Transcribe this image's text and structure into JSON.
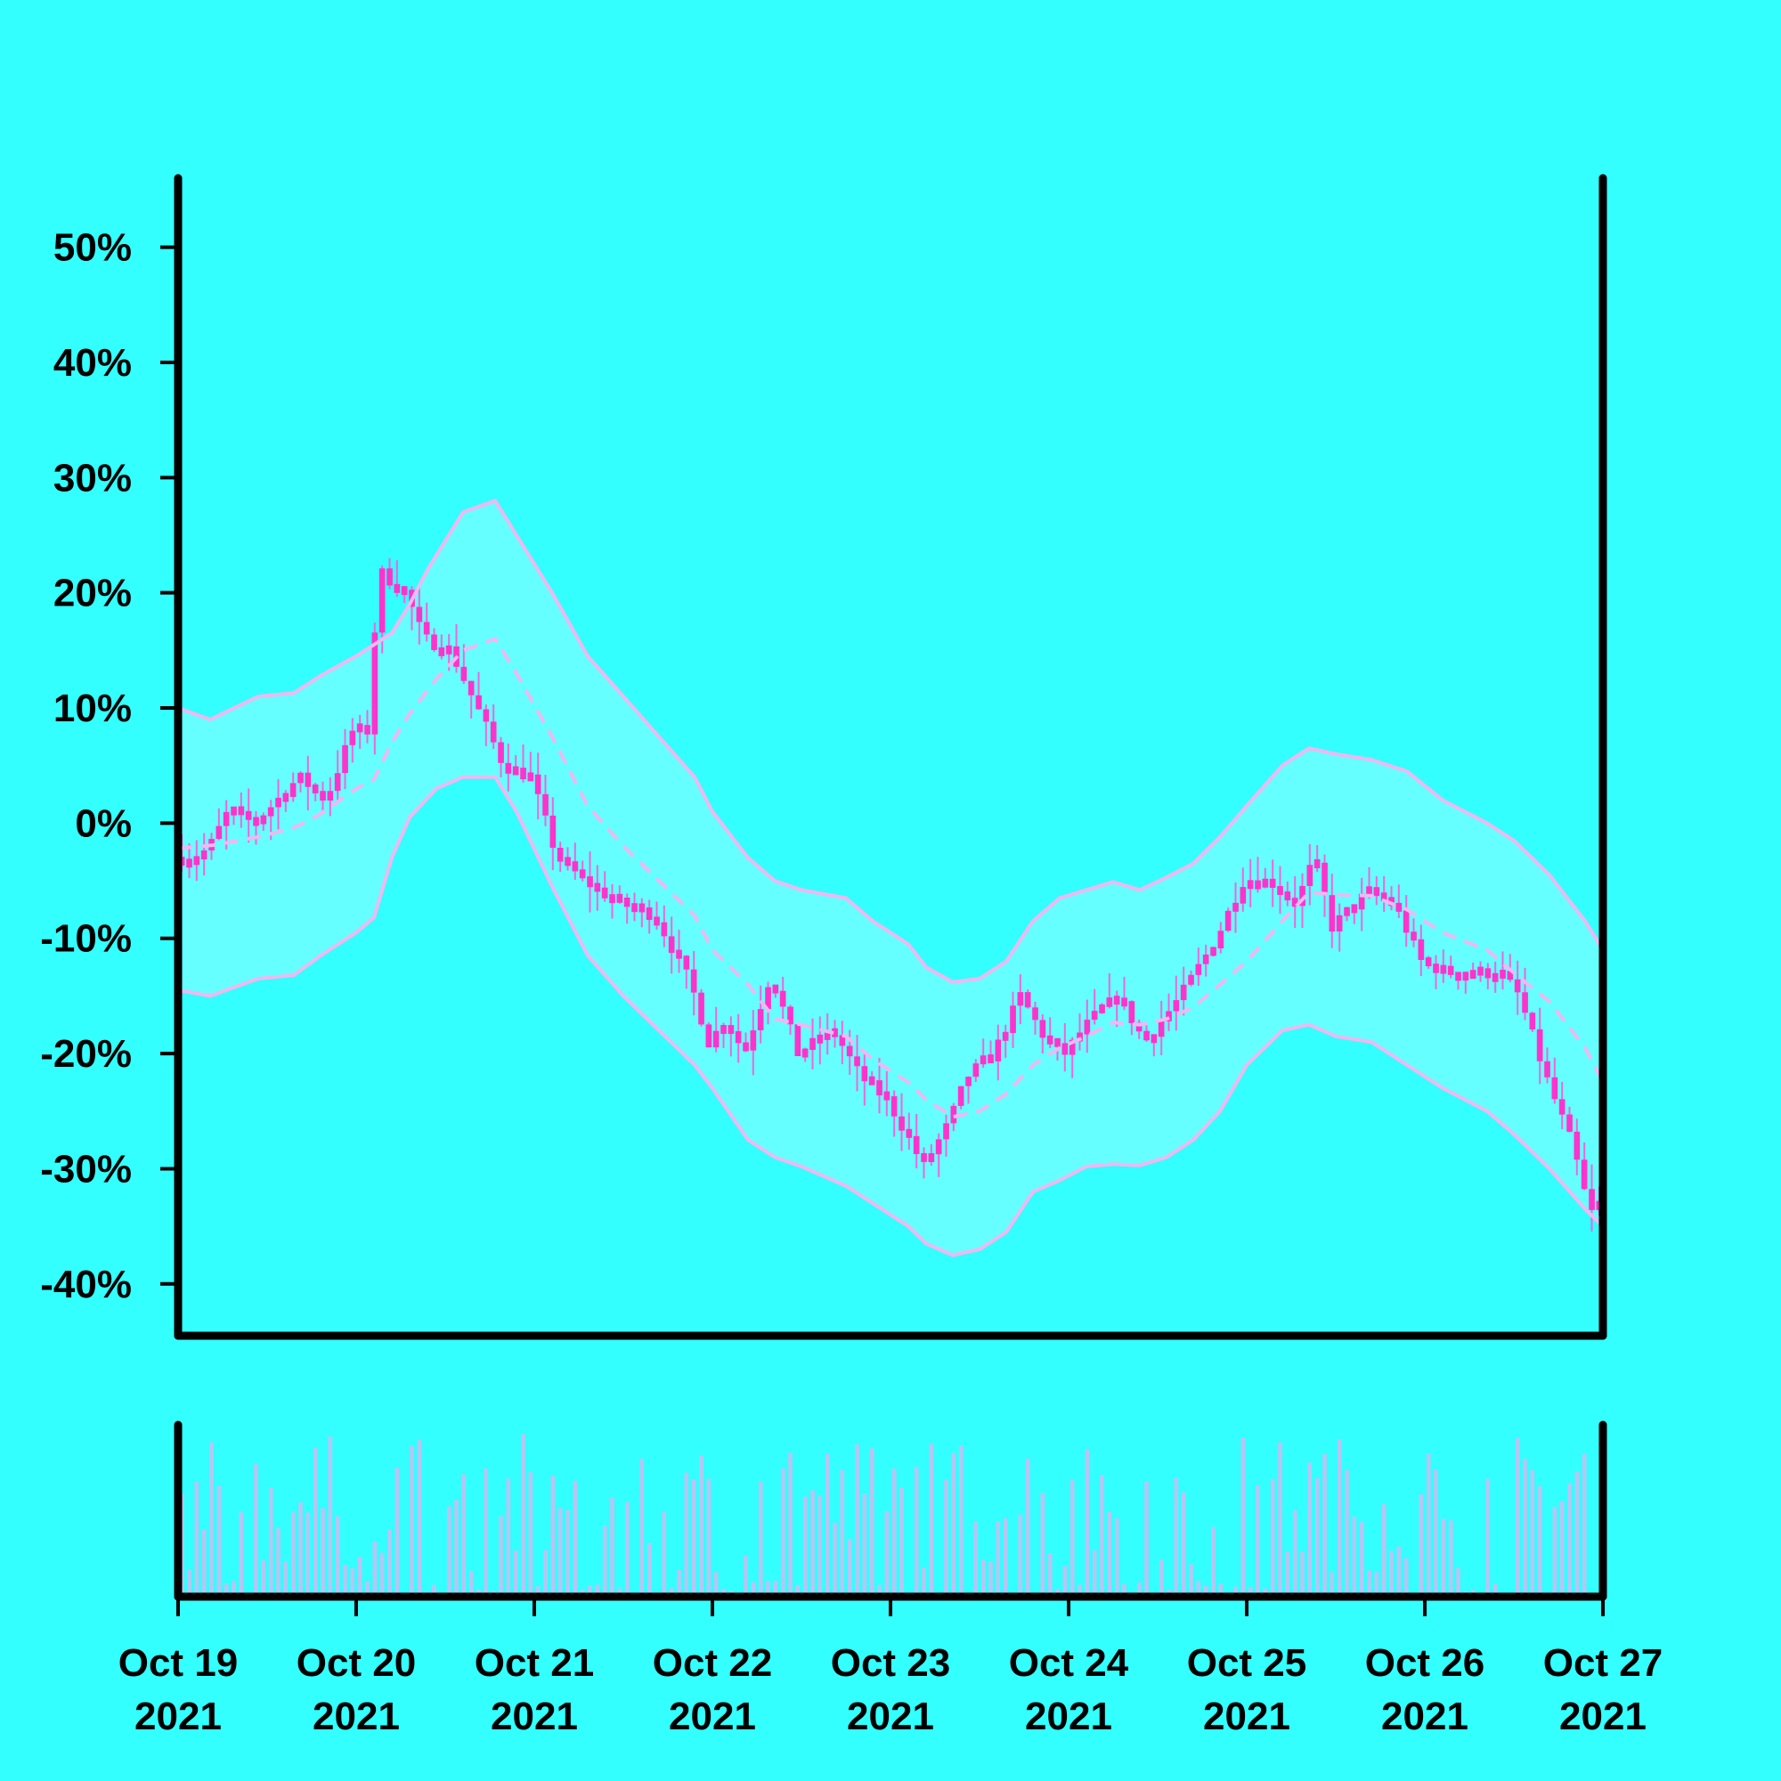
{
  "colors": {
    "background": "#33ffff",
    "band_fill": "#66ffff",
    "band_line": "#f0b8f0",
    "candle": "#ff33cc",
    "wick": "#ee66dd",
    "volume": "#b8c4f2",
    "axis": "#000000"
  },
  "chart_data": {
    "type": "candlestick",
    "title": "",
    "xlabel": "",
    "ylabel": "",
    "overlays": [
      "bollinger-upper",
      "bollinger-middle (dashed)",
      "bollinger-lower",
      "volume-bars"
    ],
    "x_range": [
      "2021-10-19 00:00",
      "2021-10-27 00:00"
    ],
    "y_range_pct": [
      -44.5,
      56
    ],
    "y_ticks": [
      {
        "value": 50,
        "label": "50%"
      },
      {
        "value": 40,
        "label": "40%"
      },
      {
        "value": 30,
        "label": "30%"
      },
      {
        "value": 20,
        "label": "20%"
      },
      {
        "value": 10,
        "label": "10%"
      },
      {
        "value": 0,
        "label": "0%"
      },
      {
        "value": -10,
        "label": "-10%"
      },
      {
        "value": -20,
        "label": "-20%"
      },
      {
        "value": -30,
        "label": "-30%"
      },
      {
        "value": -40,
        "label": "-40%"
      }
    ],
    "x_ticks": [
      {
        "day": 0,
        "line1": "Oct 19",
        "line2": "2021"
      },
      {
        "day": 1,
        "line1": "Oct 20",
        "line2": "2021"
      },
      {
        "day": 2,
        "line1": "Oct 21",
        "line2": "2021"
      },
      {
        "day": 3,
        "line1": "Oct 22",
        "line2": "2021"
      },
      {
        "day": 4,
        "line1": "Oct 23",
        "line2": "2021"
      },
      {
        "day": 5,
        "line1": "Oct 24",
        "line2": "2021"
      },
      {
        "day": 6,
        "line1": "Oct 25",
        "line2": "2021"
      },
      {
        "day": 7,
        "line1": "Oct 26",
        "line2": "2021"
      },
      {
        "day": 8,
        "line1": "Oct 27",
        "line2": "2021"
      }
    ],
    "close_path": [
      [
        0.0,
        -3
      ],
      [
        0.12,
        -3
      ],
      [
        0.2,
        -2
      ],
      [
        0.3,
        1
      ],
      [
        0.45,
        0
      ],
      [
        0.7,
        4
      ],
      [
        0.85,
        2
      ],
      [
        1.0,
        8
      ],
      [
        1.1,
        8
      ],
      [
        1.14,
        22
      ],
      [
        1.3,
        20
      ],
      [
        1.4,
        16
      ],
      [
        1.55,
        15
      ],
      [
        1.7,
        10
      ],
      [
        1.85,
        5
      ],
      [
        2.0,
        4
      ],
      [
        2.15,
        -3
      ],
      [
        2.3,
        -5
      ],
      [
        2.5,
        -7
      ],
      [
        2.7,
        -8
      ],
      [
        2.9,
        -14
      ],
      [
        3.0,
        -19
      ],
      [
        3.1,
        -17
      ],
      [
        3.2,
        -20
      ],
      [
        3.35,
        -13
      ],
      [
        3.5,
        -20
      ],
      [
        3.7,
        -18
      ],
      [
        3.85,
        -22
      ],
      [
        4.0,
        -24
      ],
      [
        4.15,
        -28
      ],
      [
        4.2,
        -30
      ],
      [
        4.35,
        -26
      ],
      [
        4.45,
        -22
      ],
      [
        4.6,
        -20
      ],
      [
        4.75,
        -15
      ],
      [
        4.9,
        -19
      ],
      [
        5.0,
        -20
      ],
      [
        5.15,
        -17
      ],
      [
        5.3,
        -15
      ],
      [
        5.45,
        -19
      ],
      [
        5.65,
        -15
      ],
      [
        5.85,
        -10
      ],
      [
        6.0,
        -5
      ],
      [
        6.15,
        -5
      ],
      [
        6.3,
        -7
      ],
      [
        6.4,
        -3
      ],
      [
        6.5,
        -9
      ],
      [
        6.7,
        -6
      ],
      [
        6.85,
        -7
      ],
      [
        7.0,
        -12
      ],
      [
        7.15,
        -13
      ],
      [
        7.3,
        -13
      ],
      [
        7.45,
        -13
      ],
      [
        7.55,
        -15
      ],
      [
        7.7,
        -22
      ],
      [
        7.85,
        -28
      ],
      [
        7.95,
        -34
      ],
      [
        8.0,
        -33
      ]
    ],
    "wick_extent": 2.2,
    "bollinger": {
      "upper": [
        [
          0.0,
          10
        ],
        [
          0.18,
          9
        ],
        [
          0.45,
          11
        ],
        [
          0.65,
          11.3
        ],
        [
          0.8,
          12.8
        ],
        [
          1.0,
          14.5
        ],
        [
          1.1,
          15.5
        ],
        [
          1.2,
          16.5
        ],
        [
          1.3,
          19
        ],
        [
          1.4,
          22
        ],
        [
          1.6,
          27
        ],
        [
          1.78,
          28
        ],
        [
          1.9,
          25
        ],
        [
          2.1,
          20
        ],
        [
          2.3,
          14.5
        ],
        [
          2.5,
          11
        ],
        [
          2.7,
          7.5
        ],
        [
          2.9,
          4
        ],
        [
          3.0,
          1
        ],
        [
          3.2,
          -3
        ],
        [
          3.35,
          -5
        ],
        [
          3.5,
          -5.8
        ],
        [
          3.75,
          -6.5
        ],
        [
          3.9,
          -8.5
        ],
        [
          4.1,
          -10.5
        ],
        [
          4.2,
          -12.5
        ],
        [
          4.35,
          -13.8
        ],
        [
          4.5,
          -13.5
        ],
        [
          4.65,
          -12
        ],
        [
          4.8,
          -8.5
        ],
        [
          4.95,
          -6.5
        ],
        [
          5.1,
          -5.8
        ],
        [
          5.25,
          -5.1
        ],
        [
          5.4,
          -5.8
        ],
        [
          5.55,
          -4.7
        ],
        [
          5.7,
          -3.5
        ],
        [
          5.85,
          -1.2
        ],
        [
          6.0,
          1.5
        ],
        [
          6.2,
          5
        ],
        [
          6.35,
          6.5
        ],
        [
          6.5,
          6
        ],
        [
          6.7,
          5.5
        ],
        [
          6.9,
          4.5
        ],
        [
          7.1,
          2
        ],
        [
          7.35,
          0
        ],
        [
          7.5,
          -1.5
        ],
        [
          7.7,
          -4.5
        ],
        [
          7.9,
          -8.5
        ],
        [
          8.0,
          -11
        ]
      ],
      "middle": [
        [
          0.0,
          -2.2
        ],
        [
          0.2,
          -1.9
        ],
        [
          0.45,
          -1.2
        ],
        [
          0.65,
          -0.4
        ],
        [
          0.8,
          0.8
        ],
        [
          1.0,
          3
        ],
        [
          1.1,
          3.8
        ],
        [
          1.2,
          7
        ],
        [
          1.3,
          9.5
        ],
        [
          1.45,
          12.5
        ],
        [
          1.6,
          15
        ],
        [
          1.78,
          16
        ],
        [
          1.9,
          13
        ],
        [
          2.1,
          7.5
        ],
        [
          2.3,
          1.5
        ],
        [
          2.5,
          -2
        ],
        [
          2.7,
          -5
        ],
        [
          2.9,
          -8
        ],
        [
          3.0,
          -11
        ],
        [
          3.2,
          -14
        ],
        [
          3.35,
          -17
        ],
        [
          3.5,
          -17.5
        ],
        [
          3.75,
          -18.5
        ],
        [
          3.9,
          -20.5
        ],
        [
          4.1,
          -22.5
        ],
        [
          4.2,
          -24
        ],
        [
          4.35,
          -25.5
        ],
        [
          4.5,
          -25
        ],
        [
          4.65,
          -23.5
        ],
        [
          4.8,
          -21
        ],
        [
          4.95,
          -19.5
        ],
        [
          5.1,
          -18.5
        ],
        [
          5.25,
          -17.3
        ],
        [
          5.4,
          -17.5
        ],
        [
          5.55,
          -17
        ],
        [
          5.7,
          -16
        ],
        [
          5.85,
          -14
        ],
        [
          6.0,
          -12
        ],
        [
          6.2,
          -8.5
        ],
        [
          6.35,
          -6
        ],
        [
          6.5,
          -6.2
        ],
        [
          6.7,
          -6.3
        ],
        [
          6.9,
          -7.5
        ],
        [
          7.1,
          -9.5
        ],
        [
          7.35,
          -11
        ],
        [
          7.5,
          -13
        ],
        [
          7.7,
          -15.5
        ],
        [
          7.9,
          -19.5
        ],
        [
          8.0,
          -22.5
        ]
      ],
      "lower": [
        [
          0.0,
          -14.5
        ],
        [
          0.18,
          -15
        ],
        [
          0.45,
          -13.5
        ],
        [
          0.65,
          -13.2
        ],
        [
          0.8,
          -11.5
        ],
        [
          1.0,
          -9.5
        ],
        [
          1.1,
          -8.2
        ],
        [
          1.2,
          -3
        ],
        [
          1.3,
          0.5
        ],
        [
          1.45,
          3
        ],
        [
          1.6,
          4
        ],
        [
          1.78,
          4
        ],
        [
          1.9,
          1
        ],
        [
          2.1,
          -5.5
        ],
        [
          2.3,
          -11.5
        ],
        [
          2.5,
          -15
        ],
        [
          2.7,
          -18
        ],
        [
          2.9,
          -21
        ],
        [
          3.0,
          -23
        ],
        [
          3.2,
          -27.5
        ],
        [
          3.35,
          -29
        ],
        [
          3.5,
          -29.8
        ],
        [
          3.75,
          -31.5
        ],
        [
          3.9,
          -33
        ],
        [
          4.1,
          -35
        ],
        [
          4.2,
          -36.5
        ],
        [
          4.35,
          -37.5
        ],
        [
          4.5,
          -37
        ],
        [
          4.65,
          -35.5
        ],
        [
          4.8,
          -32
        ],
        [
          4.95,
          -31
        ],
        [
          5.1,
          -29.8
        ],
        [
          5.25,
          -29.6
        ],
        [
          5.4,
          -29.7
        ],
        [
          5.55,
          -29
        ],
        [
          5.7,
          -27.5
        ],
        [
          5.85,
          -25
        ],
        [
          6.0,
          -21
        ],
        [
          6.2,
          -18
        ],
        [
          6.35,
          -17.5
        ],
        [
          6.5,
          -18.5
        ],
        [
          6.7,
          -19
        ],
        [
          6.9,
          -21
        ],
        [
          7.1,
          -23
        ],
        [
          7.35,
          -25
        ],
        [
          7.5,
          -27
        ],
        [
          7.7,
          -30
        ],
        [
          7.9,
          -33.5
        ],
        [
          8.0,
          -35
        ]
      ]
    },
    "volume": {
      "bars_per_day": 24,
      "relative_range": [
        0.0,
        1.0
      ]
    }
  }
}
